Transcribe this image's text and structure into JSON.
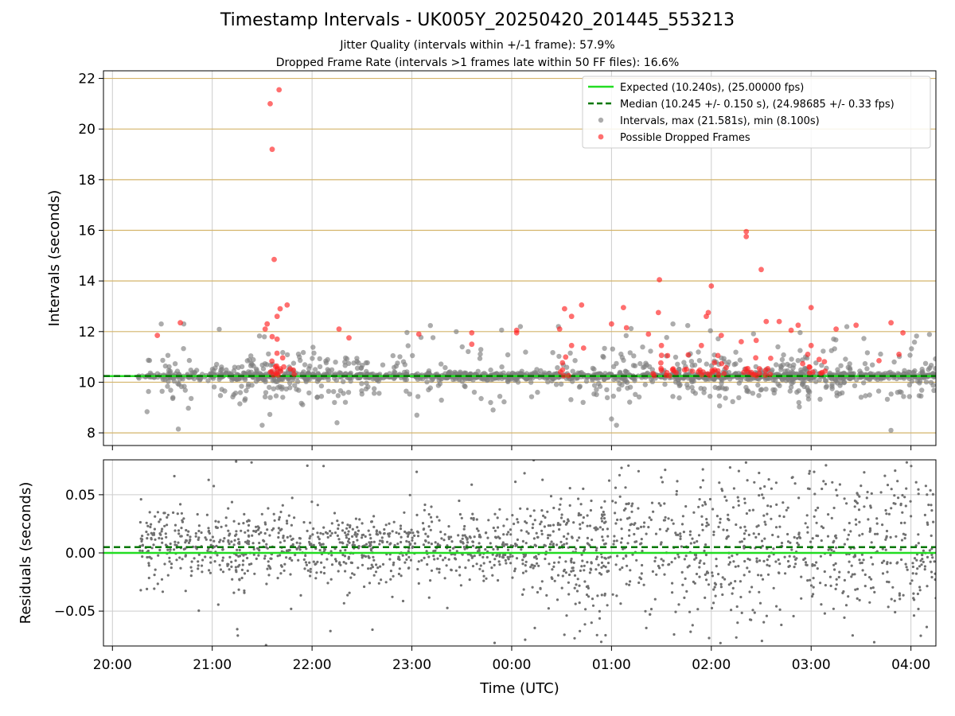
{
  "title": "Timestamp Intervals - UK005Y_20250420_201445_553213",
  "subtitle1": "Jitter Quality (intervals within +/-1 frame): 57.9%",
  "subtitle2": "Dropped Frame Rate (intervals >1 frames late within 50 FF files): 16.6%",
  "colors": {
    "expected": "#22dd22",
    "median": "#007700",
    "intervals": "#808080",
    "dropped": "#ff2222",
    "residuals": "#707070",
    "hgrid": "#d4b46a",
    "vgrid": "#cccccc"
  },
  "chart_data": [
    {
      "type": "scatter",
      "ylabel": "Intervals (seconds)",
      "ylim": [
        7.5,
        22.3
      ],
      "xlim_hours": [
        -0.09,
        8.25
      ],
      "yticks": [
        8,
        10,
        12,
        14,
        16,
        18,
        20,
        22
      ],
      "hgrid": true,
      "vgrid": true,
      "legend_position": "top-right",
      "legend": [
        "Expected (10.240s), (25.00000 fps)",
        "Median (10.245 +/- 0.150 s), (24.98685 +/- 0.33 fps)",
        "Intervals, max (21.581s), min (8.100s)",
        "Possible Dropped Frames"
      ],
      "expected_y": 10.24,
      "median_y": 10.245,
      "series": [
        {
          "name": "Intervals, max (21.581s), min (8.100s)",
          "count_estimate": 2200,
          "median": 10.245,
          "min": 8.1,
          "max": 21.581
        },
        {
          "name": "Possible Dropped Frames",
          "points": [
            [
              21.58,
              21.0
            ],
            [
              21.67,
              21.55
            ],
            [
              21.6,
              19.2
            ],
            [
              21.62,
              14.85
            ],
            [
              21.68,
              12.9
            ],
            [
              21.65,
              12.6
            ],
            [
              21.75,
              13.05
            ],
            [
              21.53,
              12.1
            ],
            [
              21.55,
              12.3
            ],
            [
              21.6,
              11.8
            ],
            [
              21.65,
              11.7
            ],
            [
              20.45,
              11.85
            ],
            [
              20.68,
              12.35
            ],
            [
              22.27,
              12.1
            ],
            [
              22.37,
              11.75
            ],
            [
              23.07,
              11.9
            ],
            [
              23.6,
              11.95
            ],
            [
              23.6,
              11.5
            ],
            [
              24.05,
              11.95
            ],
            [
              24.05,
              12.05
            ],
            [
              24.48,
              12.1
            ],
            [
              24.53,
              12.9
            ],
            [
              24.6,
              12.6
            ],
            [
              24.7,
              13.05
            ],
            [
              24.6,
              11.45
            ],
            [
              24.72,
              11.35
            ],
            [
              25.0,
              12.3
            ],
            [
              25.12,
              12.95
            ],
            [
              25.15,
              12.15
            ],
            [
              25.48,
              14.05
            ],
            [
              25.47,
              12.75
            ],
            [
              25.37,
              11.9
            ],
            [
              25.95,
              12.6
            ],
            [
              25.97,
              12.75
            ],
            [
              26.0,
              13.8
            ],
            [
              26.35,
              15.95
            ],
            [
              26.35,
              15.75
            ],
            [
              26.5,
              14.45
            ],
            [
              26.55,
              12.4
            ],
            [
              26.68,
              12.4
            ],
            [
              26.8,
              12.05
            ],
            [
              26.87,
              12.25
            ],
            [
              27.0,
              12.95
            ],
            [
              27.25,
              12.1
            ],
            [
              27.45,
              12.25
            ],
            [
              27.8,
              12.35
            ],
            [
              27.92,
              11.95
            ],
            [
              27.88,
              11.1
            ],
            [
              25.5,
              11.45
            ],
            [
              25.9,
              11.45
            ],
            [
              26.1,
              11.85
            ],
            [
              26.3,
              11.6
            ],
            [
              26.45,
              11.65
            ],
            [
              27.0,
              11.45
            ],
            [
              27.08,
              10.9
            ],
            [
              27.68,
              10.85
            ]
          ]
        }
      ]
    },
    {
      "type": "scatter",
      "ylabel": "Residuals (seconds)",
      "xlabel": "Time (UTC)",
      "ylim": [
        -0.08,
        0.08
      ],
      "yticks": [
        0.05,
        0.0,
        -0.05
      ],
      "ytick_labels": [
        "0.05",
        "0.00",
        "−0.05"
      ],
      "xticks": [
        "20:00",
        "21:00",
        "22:00",
        "23:00",
        "00:00",
        "01:00",
        "02:00",
        "03:00",
        "04:00"
      ],
      "expected_y": 0.0,
      "median_y": 0.005,
      "series": [
        {
          "name": "Residuals",
          "count_estimate": 2200
        }
      ]
    }
  ]
}
